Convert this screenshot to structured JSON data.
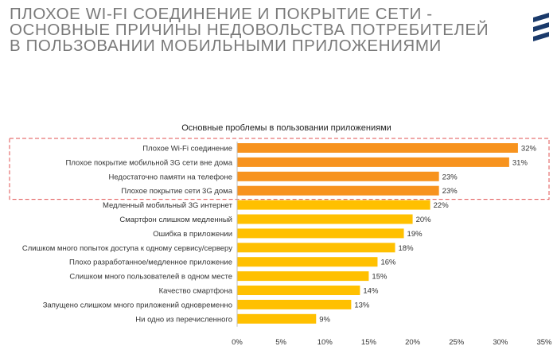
{
  "title_lines": [
    "ПЛОХОЕ WI-FI СОЕДИНЕНИЕ И ПОКРЫТИЕ СЕТИ -",
    "ОСНОВНЫЕ ПРИЧИНЫ НЕДОВОЛЬСТВА ПОТРЕБИТЕЛЕЙ",
    "В ПОЛЬЗОВАНИИ МОБИЛЬНЫМИ  ПРИЛОЖЕНИЯМИ"
  ],
  "logo": {
    "icon": "ericsson-logo-icon",
    "color": "#1a3a6b"
  },
  "colors": {
    "highlight": "#f7931e",
    "bar": "#ffc000",
    "dashed_box": "#e05050"
  },
  "chart_data": {
    "type": "bar",
    "orientation": "horizontal",
    "title": "Основные проблемы в пользовании приложениями",
    "categories": [
      "Плохое Wi-Fi соединение",
      "Плохое  покрытие мобильной  3G сети вне дома",
      "Недостаточно памяти на телефоне",
      "Плохое покрытие сети 3G дома",
      "Медленный мобильный 3G интернет",
      "Смартфон слишком медленный",
      "Ошибка в приложении",
      "Слишком много попыток доступа к одному сервису/серверу",
      "Плохо разработанное/медленное приложение",
      "Слишком много пользователей в одном месте",
      "Качество смартфона",
      "Запущено слишком много приложений одновременно",
      "Ни одно из перечисленного"
    ],
    "values": [
      32,
      31,
      23,
      23,
      22,
      20,
      19,
      18,
      16,
      15,
      14,
      13,
      9
    ],
    "value_labels": [
      "32%",
      "31%",
      "23%",
      "23%",
      "22%",
      "20%",
      "19%",
      "18%",
      "16%",
      "15%",
      "14%",
      "13%",
      "9%"
    ],
    "highlighted_count": 4,
    "xlim": [
      0,
      35
    ],
    "ticks": [
      "0%",
      "5%",
      "10%",
      "15%",
      "20%",
      "25%",
      "30%",
      "35%"
    ],
    "grid": false,
    "legend": "none"
  }
}
